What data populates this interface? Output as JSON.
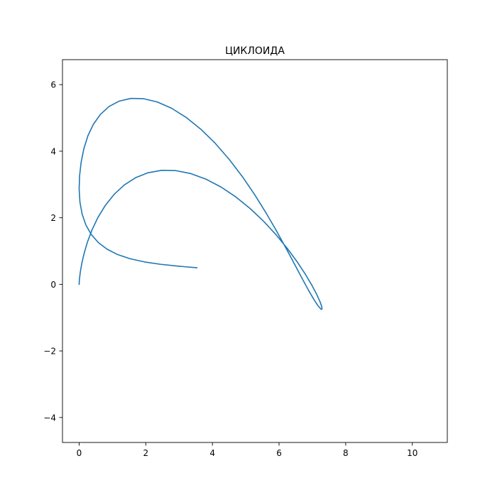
{
  "chart_data": {
    "type": "line",
    "title": "ЦИКЛОИДА",
    "xlabel": "",
    "ylabel": "",
    "xlim": [
      -0.5,
      11.05
    ],
    "ylim": [
      -4.75,
      6.75
    ],
    "xticks": [
      0,
      2,
      4,
      6,
      8,
      10
    ],
    "yticks": [
      -4,
      -2,
      0,
      2,
      4,
      6
    ],
    "xtick_labels": [
      "0",
      "2",
      "4",
      "6",
      "8",
      "10"
    ],
    "ytick_labels": [
      "−4",
      "−2",
      "0",
      "2",
      "4",
      "6"
    ],
    "grid": false,
    "legend": "none",
    "series": [
      {
        "color": "#1f77b4",
        "x": [
          0,
          0.0012,
          0.0097,
          0.0325,
          0.0763,
          0.1471,
          0.2502,
          0.3898,
          0.5689,
          0.7894,
          1.0517,
          1.3549,
          1.6966,
          2.073,
          2.479,
          2.9082,
          3.3536,
          3.807,
          4.2602,
          4.7048,
          5.1329,
          5.5368,
          5.9096,
          6.2452,
          6.5385,
          6.7857,
          6.9842,
          7.1331,
          7.2325,
          7.2836,
          7.2881,
          7.2486,
          7.1676,
          7.0481,
          6.8924,
          6.7025,
          6.4798,
          6.2253,
          5.9394,
          5.623,
          5.277,
          4.9036,
          4.506,
          4.0884,
          3.6564,
          3.217,
          2.7781,
          2.3484,
          1.9371,
          1.5531,
          1.2046,
          0.8983,
          0.6385,
          0.4271,
          0.2627,
          0.1421,
          0.0608,
          0.0138,
          0.0003,
          0.024,
          0.0898,
          0.2022,
          0.3643,
          0.5774,
          0.8427,
          1.1616,
          1.5349,
          1.9621,
          2.441,
          2.9668,
          3.5327
        ],
        "y": [
          0,
          0.0401,
          0.159,
          0.3522,
          0.611,
          0.9231,
          1.2731,
          1.6441,
          2.0182,
          2.3774,
          2.7049,
          2.9852,
          3.2052,
          3.3545,
          3.4261,
          3.4168,
          3.3268,
          3.1598,
          2.9226,
          2.6247,
          2.2777,
          1.8951,
          1.4915,
          1.0823,
          0.6832,
          0.3094,
          -0.0251,
          -0.3073,
          -0.527,
          -0.6761,
          -0.7479,
          -0.7371,
          -0.6407,
          -0.4579,
          -0.1904,
          0.1576,
          0.5776,
          1.0557,
          1.5771,
          2.125,
          2.6818,
          3.23,
          3.7524,
          4.2326,
          4.6567,
          5.0121,
          5.2884,
          5.4781,
          5.5772,
          5.5853,
          5.5051,
          5.3424,
          5.1064,
          4.8085,
          4.4611,
          4.0783,
          3.6743,
          3.263,
          2.8578,
          2.47,
          2.1094,
          1.7835,
          1.4975,
          1.2541,
          1.0533,
          0.8927,
          0.7682,
          0.674,
          0.6029,
          0.5472,
          0.4994
        ]
      }
    ]
  }
}
